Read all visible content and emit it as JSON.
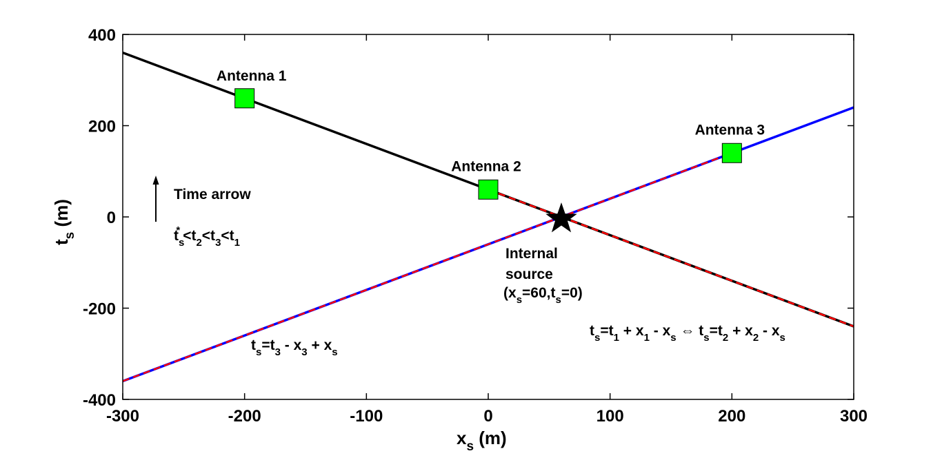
{
  "chart_data": {
    "type": "line",
    "xlabel": "x_s (m)",
    "ylabel": "t*_s (m)",
    "xlim": [
      -300,
      300
    ],
    "ylim": [
      -400,
      400
    ],
    "x_ticks": [
      -300,
      -200,
      -100,
      0,
      100,
      200,
      300
    ],
    "y_ticks": [
      -400,
      -200,
      0,
      200,
      400
    ],
    "grid": false,
    "series": [
      {
        "color": "#000000",
        "style": "solid",
        "x": [
          -300,
          300
        ],
        "y": [
          360,
          -240
        ]
      },
      {
        "color": "#0000ff",
        "style": "solid",
        "x": [
          -300,
          300
        ],
        "y": [
          -360,
          240
        ]
      },
      {
        "color": "#ff0000",
        "style": "dashed",
        "x": [
          0,
          300
        ],
        "y": [
          60,
          -240
        ]
      },
      {
        "color": "#ff0000",
        "style": "dashed",
        "x": [
          -300,
          200
        ],
        "y": [
          -360,
          140
        ]
      }
    ],
    "antennas": [
      {
        "label": "Antenna 1",
        "x": -200,
        "y": 260,
        "color": "#00ff00"
      },
      {
        "label": "Antenna 2",
        "x": 0,
        "y": 60,
        "color": "#00ff00"
      },
      {
        "label": "Antenna 3",
        "x": 200,
        "y": 140,
        "color": "#00ff00"
      }
    ],
    "source": {
      "x": 60,
      "y": 0,
      "lines": [
        "Internal",
        "source"
      ]
    },
    "time_arrow_label": "Time arrow"
  }
}
